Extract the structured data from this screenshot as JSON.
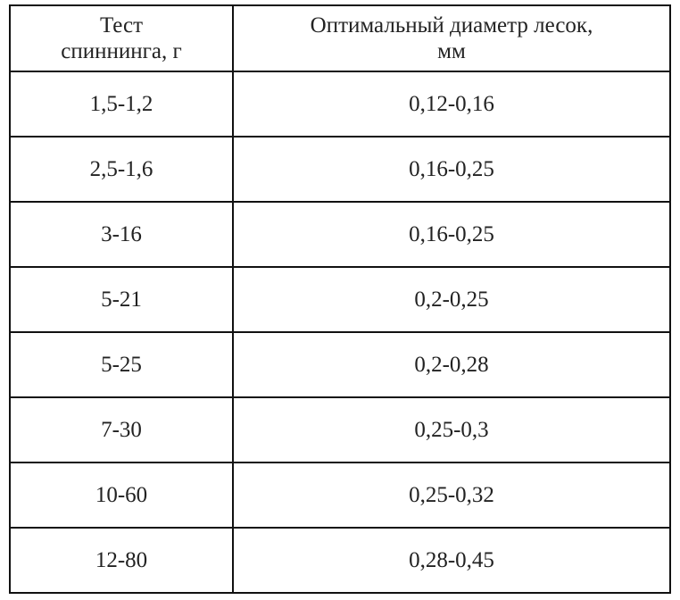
{
  "table": {
    "header": [
      [
        "Тест",
        "спиннинга, г"
      ],
      [
        "Оптимальный диаметр лесок,",
        "мм"
      ]
    ],
    "rows": [
      [
        "1,5-1,2",
        "0,12-0,16"
      ],
      [
        "2,5-1,6",
        "0,16-0,25"
      ],
      [
        "3-16",
        "0,16-0,25"
      ],
      [
        "5-21",
        "0,2-0,25"
      ],
      [
        "5-25",
        "0,2-0,28"
      ],
      [
        "7-30",
        "0,25-0,3"
      ],
      [
        "10-60",
        "0,25-0,32"
      ],
      [
        "12-80",
        "0,28-0,45"
      ]
    ]
  }
}
